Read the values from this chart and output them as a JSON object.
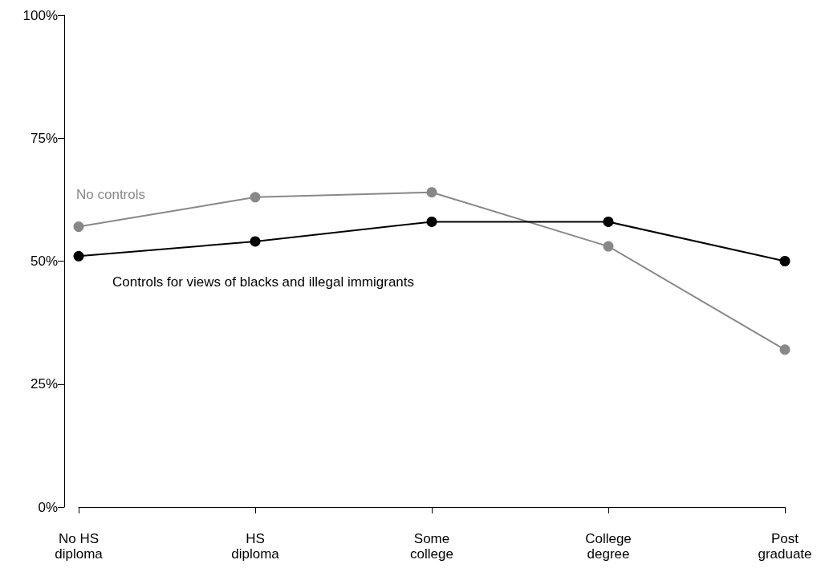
{
  "chart_data": {
    "type": "line",
    "categories": [
      "No HS\ndiploma",
      "HS\ndiploma",
      "Some\ncollege",
      "College\ndegree",
      "Post\ngraduate"
    ],
    "series": [
      {
        "name": "No controls",
        "color": "#888888",
        "values": [
          57,
          63,
          64,
          53,
          32
        ]
      },
      {
        "name": "Controls for views of blacks and illegal immigrants",
        "color": "#000000",
        "values": [
          51,
          54,
          58,
          58,
          50
        ]
      }
    ],
    "ylim": [
      0,
      100
    ],
    "yticks": [
      {
        "value": 0,
        "label": "0%"
      },
      {
        "value": 25,
        "label": "25%"
      },
      {
        "value": 50,
        "label": "50%"
      },
      {
        "value": 75,
        "label": "75%"
      },
      {
        "value": 100,
        "label": "100%"
      }
    ],
    "grid": false,
    "legend": false,
    "marker": "circle",
    "line_style": "solid"
  }
}
